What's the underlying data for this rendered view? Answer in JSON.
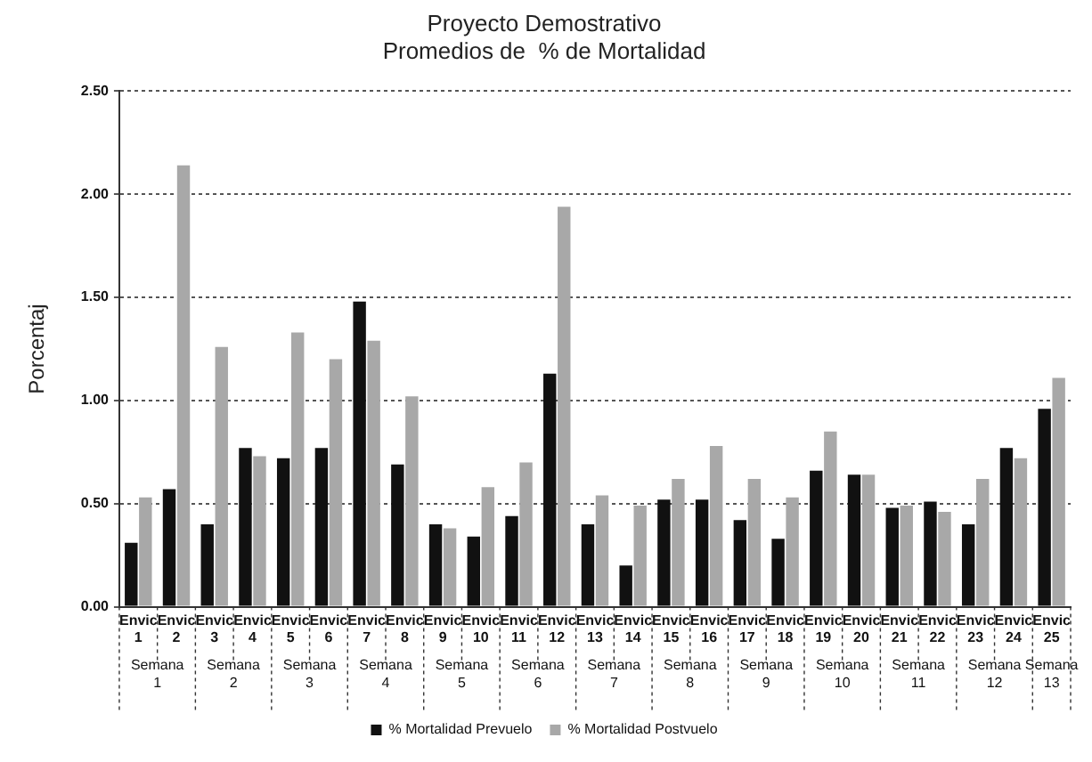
{
  "chart_data": {
    "type": "bar",
    "title": "Proyecto Demostrativo",
    "subtitle": "Promedios de  % de Mortalidad",
    "ylabel": "Porcentaj",
    "categories": [
      "Envic 1",
      "Envic 2",
      "Envic 3",
      "Envic 4",
      "Envic 5",
      "Envic 6",
      "Envic 7",
      "Envic 8",
      "Envic 9",
      "Envic 10",
      "Envic 11",
      "Envic 12",
      "Envic 13",
      "Envic 14",
      "Envic 15",
      "Envic 16",
      "Envic 17",
      "Envic 18",
      "Envic 19",
      "Envic 20",
      "Envic 21",
      "Envic 22",
      "Envic 23",
      "Envic 24",
      "Envic 25"
    ],
    "series": [
      {
        "name": "% Mortalidad Prevuelo",
        "color": "#111111",
        "values": [
          0.31,
          0.57,
          0.4,
          0.77,
          0.72,
          0.77,
          1.48,
          0.69,
          0.4,
          0.34,
          0.44,
          1.13,
          0.4,
          0.2,
          0.52,
          0.52,
          0.42,
          0.33,
          0.66,
          0.64,
          0.48,
          0.51,
          0.4,
          0.77,
          0.96
        ]
      },
      {
        "name": "% Mortalidad Postvuelo",
        "color": "#a8a8a8",
        "values": [
          0.53,
          2.14,
          1.26,
          0.73,
          1.33,
          1.2,
          1.29,
          1.02,
          0.38,
          0.58,
          0.7,
          1.94,
          0.54,
          0.49,
          0.62,
          0.78,
          0.62,
          0.53,
          0.85,
          0.64,
          0.49,
          0.46,
          0.62,
          0.72,
          1.11
        ]
      }
    ],
    "annotations": [
      "Semana 1",
      "Semana 2",
      "Semana 3",
      "Semana 4",
      "Semana 5",
      "Semana 6",
      "Semana 7",
      "Semana 8",
      "Semana 9",
      "Semana 10",
      "Semana 11",
      "Semana 12",
      "Semana 13"
    ],
    "ylim": [
      0,
      2.5
    ],
    "yticks": [
      {
        "value": 0,
        "label": "0.00"
      },
      {
        "value": 0.5,
        "label": "0.50"
      },
      {
        "value": 1,
        "label": "1.00"
      },
      {
        "value": 1.5,
        "label": "1.50"
      },
      {
        "value": 2,
        "label": "2.00"
      },
      {
        "value": 2.5,
        "label": "2.50"
      }
    ],
    "grid": "y",
    "legend": "bottom"
  }
}
